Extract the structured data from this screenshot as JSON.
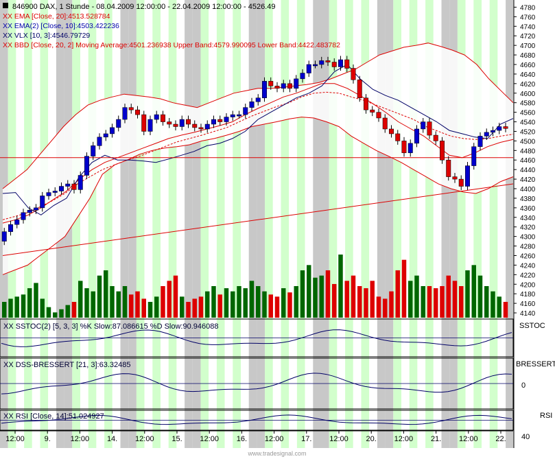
{
  "header": {
    "title": "846900  DAX, 1 Stunde - 08.04.2009 12:00:00 - 22.04.2009 12:00:00 - 4526.49",
    "indicators": [
      {
        "text": "XX EMA [Close, 20]:4513.528784",
        "color": "#dd0000"
      },
      {
        "text": "XX EMA(2) [Close, 10]:4503.422236",
        "color": "#0000aa"
      },
      {
        "text": "XX VLX [10, 3]:4546.79729",
        "color": "#000066"
      },
      {
        "text": "XX BBD [Close, 20, 2] Moving Average:4501.236938 Upper Band:4579.990095 Lower Band:4422.483782",
        "color": "#dd0000"
      }
    ]
  },
  "panels": {
    "sstoc": {
      "label": "XX SSTOC(2) [5, 3, 3] %K Slow:87.086615 %D Slow:90.946088",
      "axis": "SSTOC"
    },
    "dss": {
      "label": "XX DSS-BRESSERT [21, 3]:63.32485",
      "axis": "BRESSERT",
      "tick": "0"
    },
    "rsi": {
      "label": "XX RSI [Close, 14]:51.024927",
      "axis": "RSI",
      "tick": "40"
    }
  },
  "footer": "www.tradesignal.com",
  "colors": {
    "up": "#0000cc",
    "down": "#dd0000",
    "up_volume": "#006600",
    "band": "#dd0000",
    "stripe_green": "#d2ffcc",
    "stripe_gray": "#c8c8c8"
  },
  "chart_data": {
    "type": "candlestick",
    "x_labels": [
      "12:00",
      "9.",
      "12:00",
      "14.",
      "12:00",
      "15.",
      "12:00",
      "16.",
      "12:00",
      "17.",
      "12:00",
      "20.",
      "12:00",
      "21.",
      "12:00",
      "22."
    ],
    "y_ticks": [
      4140,
      4160,
      4180,
      4200,
      4220,
      4240,
      4260,
      4280,
      4300,
      4320,
      4340,
      4360,
      4380,
      4400,
      4420,
      4440,
      4460,
      4480,
      4500,
      4520,
      4540,
      4560,
      4580,
      4600,
      4620,
      4640,
      4660,
      4680,
      4700,
      4720,
      4740,
      4760,
      4780
    ],
    "ylim": [
      4130,
      4795
    ],
    "closes": [
      4310,
      4325,
      4335,
      4350,
      4355,
      4360,
      4385,
      4392,
      4395,
      4405,
      4410,
      4398,
      4428,
      4468,
      4490,
      4508,
      4515,
      4528,
      4545,
      4570,
      4565,
      4555,
      4520,
      4545,
      4555,
      4540,
      4535,
      4530,
      4545,
      4535,
      4528,
      4525,
      4535,
      4545,
      4540,
      4550,
      4555,
      4555,
      4570,
      4582,
      4590,
      4625,
      4615,
      4610,
      4620,
      4610,
      4630,
      4642,
      4660,
      4660,
      4668,
      4665,
      4655,
      4670,
      4652,
      4628,
      4590,
      4565,
      4560,
      4548,
      4525,
      4515,
      4500,
      4475,
      4495,
      4525,
      4540,
      4512,
      4500,
      4460,
      4425,
      4420,
      4405,
      4448,
      4488,
      4510,
      4518,
      4522,
      4530,
      4526
    ],
    "volumes": [
      15,
      18,
      20,
      22,
      28,
      33,
      18,
      10,
      5,
      8,
      12,
      15,
      35,
      28,
      25,
      40,
      45,
      30,
      25,
      30,
      22,
      25,
      18,
      15,
      20,
      30,
      35,
      40,
      20,
      15,
      18,
      20,
      25,
      30,
      22,
      28,
      25,
      30,
      28,
      35,
      30,
      25,
      22,
      20,
      28,
      24,
      30,
      45,
      50,
      38,
      40,
      45,
      32,
      60,
      35,
      40,
      30,
      28,
      35,
      20,
      18,
      25,
      45,
      55,
      35,
      40,
      30,
      30,
      28,
      30,
      40,
      35,
      30,
      45,
      50,
      40,
      30,
      25,
      20,
      15
    ],
    "upper_band": [
      4400,
      4420,
      4440,
      4470,
      4500,
      4530,
      4555,
      4575,
      4585,
      4592,
      4598,
      4595,
      4592,
      4588,
      4580,
      4575,
      4570,
      4580,
      4590,
      4600,
      4605,
      4610,
      4610,
      4612,
      4615,
      4618,
      4622,
      4630,
      4640,
      4650,
      4665,
      4680,
      4688,
      4696,
      4700,
      4705,
      4698,
      4690,
      4680,
      4660,
      4630,
      4605,
      4580
    ],
    "lower_band": [
      4220,
      4230,
      4240,
      4260,
      4280,
      4300,
      4340,
      4380,
      4430,
      4450,
      4460,
      4472,
      4480,
      4485,
      4488,
      4492,
      4500,
      4505,
      4512,
      4520,
      4530,
      4535,
      4540,
      4546,
      4550,
      4548,
      4540,
      4530,
      4510,
      4495,
      4480,
      4468,
      4455,
      4440,
      4425,
      4410,
      4400,
      4393,
      4390,
      4400,
      4415,
      4425
    ],
    "ema20": [
      4335,
      4342,
      4350,
      4362,
      4375,
      4390,
      4410,
      4425,
      4440,
      4450,
      4460,
      4468,
      4478,
      4488,
      4498,
      4505,
      4512,
      4520,
      4528,
      4540,
      4552,
      4562,
      4572,
      4580,
      4592,
      4600,
      4602,
      4600,
      4592,
      4585,
      4575,
      4565,
      4555,
      4545,
      4530,
      4520,
      4510,
      4505,
      4503,
      4505,
      4510,
      4514
    ],
    "ema10": [
      4328,
      4335,
      4345,
      4360,
      4378,
      4395,
      4420,
      4440,
      4455,
      4465,
      4475,
      4485,
      4495,
      4505,
      4512,
      4518,
      4525,
      4532,
      4540,
      4555,
      4568,
      4580,
      4592,
      4600,
      4610,
      4620,
      4620,
      4610,
      4595,
      4578,
      4560,
      4540,
      4525,
      4510,
      4490,
      4470,
      4465,
      4475,
      4488,
      4497,
      4503
    ],
    "vlx": [
      4390,
      4392,
      4360,
      4345,
      4365,
      4380,
      4425,
      4455,
      4470,
      4460,
      4460,
      4458,
      4455,
      4462,
      4470,
      4478,
      4490,
      4495,
      4505,
      4520,
      4545,
      4560,
      4575,
      4590,
      4600,
      4615,
      4645,
      4660,
      4630,
      4608,
      4595,
      4585,
      4570,
      4555,
      4540,
      4522,
      4515,
      4508,
      4505,
      4535,
      4547
    ],
    "trend_line": [
      [
        4260,
        4410
      ]
    ],
    "horizontal_line": 4465
  }
}
